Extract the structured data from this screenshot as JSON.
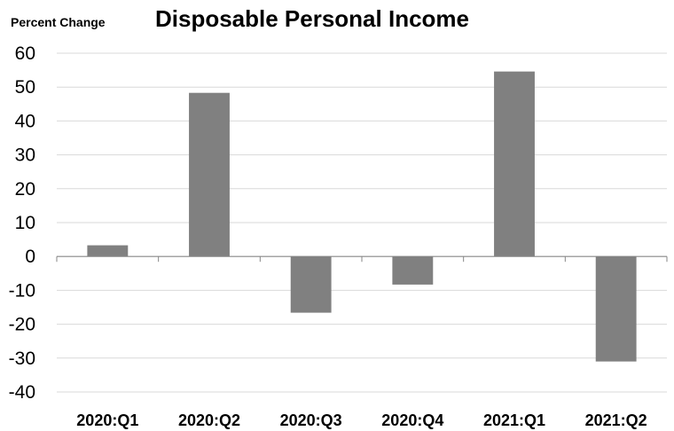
{
  "chart_data": {
    "type": "bar",
    "title": "Disposable Personal Income",
    "ylabel": "Percent Change",
    "xlabel": "",
    "categories": [
      "2020:Q1",
      "2020:Q2",
      "2020:Q3",
      "2020:Q4",
      "2021:Q1",
      "2021:Q2"
    ],
    "values": [
      3.3,
      48.3,
      -16.6,
      -8.3,
      54.6,
      -31.0
    ],
    "ylim": [
      -40,
      60
    ],
    "yticks": [
      "60",
      "50",
      "40",
      "30",
      "20",
      "10",
      "0",
      "-10",
      "-20",
      "-30",
      "-40"
    ],
    "grid": true,
    "legend": "none",
    "colors": {
      "bar": "#808080",
      "grid": "#d9d9d9",
      "axis": "#868686"
    }
  }
}
